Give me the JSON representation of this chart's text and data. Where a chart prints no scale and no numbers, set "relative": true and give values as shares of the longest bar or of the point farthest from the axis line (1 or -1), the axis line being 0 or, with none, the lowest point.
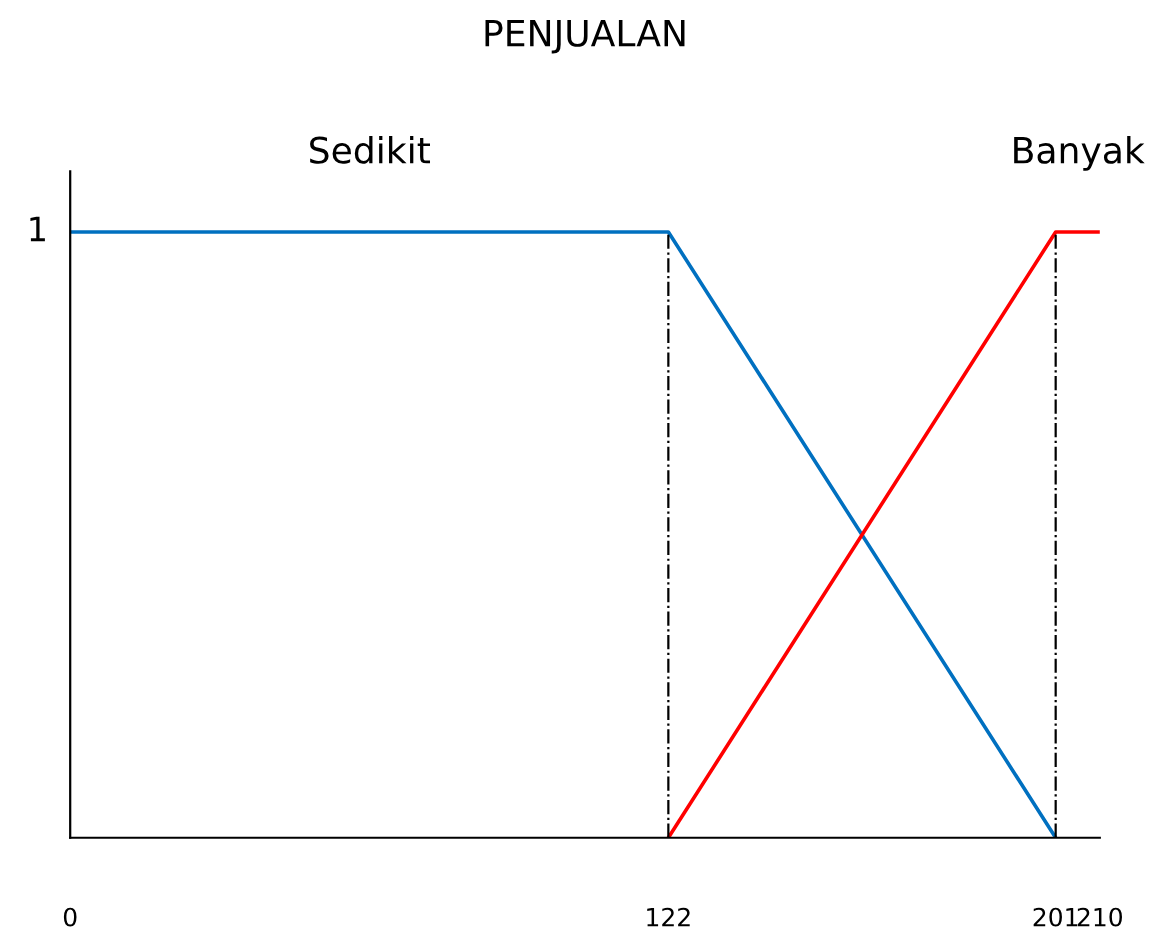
{
  "chart_data": {
    "type": "line",
    "title": "PENJUALAN",
    "series": [
      {
        "name": "Sedikit",
        "color": "#0070c0",
        "x": [
          0,
          122,
          201
        ],
        "values": [
          1,
          1,
          0
        ]
      },
      {
        "name": "Banyak",
        "color": "#ff0000",
        "x": [
          122,
          201,
          210
        ],
        "values": [
          0,
          1,
          1
        ]
      }
    ],
    "xlim": [
      0,
      210
    ],
    "xticks": [
      0,
      122,
      201,
      210
    ],
    "relative": true,
    "annotations": [
      {
        "text": "1",
        "x": 0,
        "y": 1
      }
    ],
    "ref_lines": [
      {
        "axis": "x",
        "value": 122,
        "color": "#000000",
        "line_style": "dashed"
      },
      {
        "axis": "x",
        "value": 201,
        "color": "#000000",
        "line_style": "dashed"
      }
    ],
    "grid": false,
    "legend": false,
    "marker": "none",
    "line_style": "solid"
  }
}
